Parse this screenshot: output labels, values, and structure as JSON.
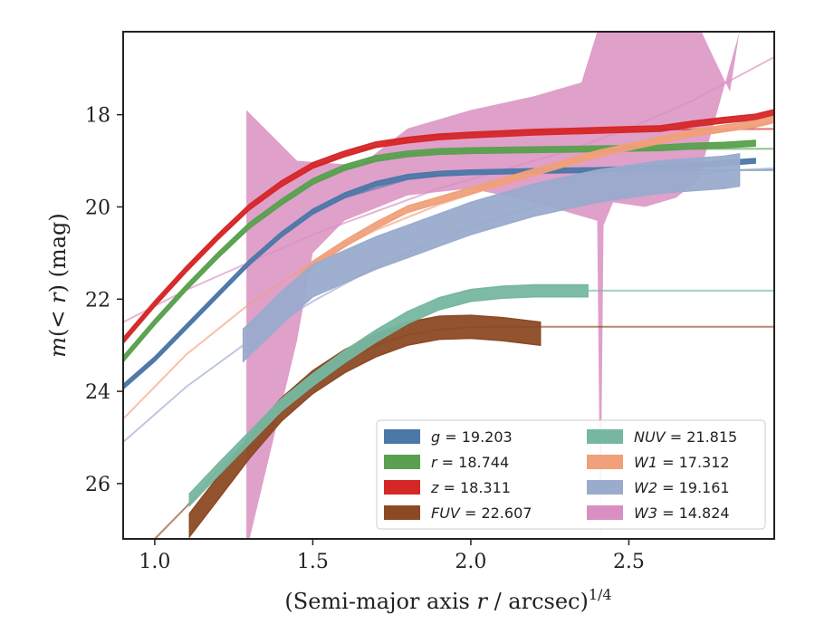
{
  "chart_data": {
    "type": "line",
    "xlabel": "(Semi-major axis r / arcsec)^{1/4}",
    "ylabel": "m(< r) (mag)",
    "xlim": [
      0.9,
      2.96
    ],
    "ylim": [
      27.2,
      16.2
    ],
    "y_inverted": true,
    "xticks": [
      "1.0",
      "1.5",
      "2.0",
      "2.5"
    ],
    "yticks": [
      "18",
      "20",
      "22",
      "24",
      "26"
    ],
    "grid": false,
    "legend_position": "lower-right",
    "legend_columns": 2,
    "series": [
      {
        "name": "g = 19.203",
        "label": {
          "band": "g",
          "value": "19.203"
        },
        "color": "#4c78a8",
        "data_x": [
          0.9,
          1.0,
          1.1,
          1.2,
          1.3,
          1.4,
          1.5,
          1.6,
          1.7,
          1.8,
          1.9,
          2.0,
          2.2,
          2.4,
          2.6,
          2.7,
          2.8,
          2.9
        ],
        "data_y": [
          23.9,
          23.3,
          22.6,
          21.9,
          21.2,
          20.6,
          20.1,
          19.75,
          19.5,
          19.35,
          19.28,
          19.25,
          19.22,
          19.2,
          19.15,
          19.1,
          19.05,
          19.0
        ],
        "band_halfwidth": 0.05,
        "model_x": [
          0.9,
          1.0,
          1.1,
          1.2,
          1.3,
          1.4,
          1.5,
          1.6,
          1.8,
          2.0,
          2.4,
          2.96
        ],
        "model_y": [
          23.9,
          23.3,
          22.6,
          21.9,
          21.25,
          20.65,
          20.15,
          19.8,
          19.4,
          19.25,
          19.21,
          19.2
        ]
      },
      {
        "name": "r = 18.744",
        "label": {
          "band": "r",
          "value": "18.744"
        },
        "color": "#59a14f",
        "data_x": [
          0.9,
          1.0,
          1.1,
          1.2,
          1.3,
          1.4,
          1.5,
          1.6,
          1.7,
          1.8,
          1.9,
          2.0,
          2.2,
          2.4,
          2.6,
          2.7,
          2.8,
          2.9
        ],
        "data_y": [
          23.3,
          22.5,
          21.75,
          21.05,
          20.4,
          19.9,
          19.45,
          19.15,
          18.95,
          18.85,
          18.8,
          18.78,
          18.76,
          18.74,
          18.72,
          18.68,
          18.66,
          18.62
        ],
        "band_halfwidth": 0.06,
        "model_x": [
          0.9,
          1.0,
          1.1,
          1.2,
          1.3,
          1.4,
          1.5,
          1.6,
          1.8,
          2.0,
          2.4,
          2.96
        ],
        "model_y": [
          23.3,
          22.5,
          21.75,
          21.05,
          20.45,
          19.95,
          19.5,
          19.15,
          18.85,
          18.78,
          18.75,
          18.74
        ]
      },
      {
        "name": "z = 18.311",
        "label": {
          "band": "z",
          "value": "18.311"
        },
        "color": "#d62728",
        "data_x": [
          0.9,
          1.0,
          1.1,
          1.2,
          1.3,
          1.4,
          1.5,
          1.6,
          1.7,
          1.8,
          1.9,
          2.0,
          2.2,
          2.4,
          2.6,
          2.7,
          2.8,
          2.9,
          2.96
        ],
        "data_y": [
          22.9,
          22.1,
          21.35,
          20.65,
          20.0,
          19.5,
          19.1,
          18.85,
          18.65,
          18.55,
          18.48,
          18.44,
          18.38,
          18.34,
          18.3,
          18.2,
          18.12,
          18.05,
          17.95
        ],
        "band_halfwidth": 0.06,
        "model_x": [
          0.9,
          1.0,
          1.1,
          1.2,
          1.3,
          1.4,
          1.5,
          1.6,
          1.8,
          2.0,
          2.4,
          2.96
        ],
        "model_y": [
          22.9,
          22.1,
          21.35,
          20.65,
          20.05,
          19.55,
          19.15,
          18.85,
          18.5,
          18.4,
          18.33,
          18.31
        ]
      },
      {
        "name": "FUV = 22.607",
        "label": {
          "band": "FUV",
          "value": "22.607"
        },
        "color": "#8c4a24",
        "data_x": [
          1.11,
          1.2,
          1.3,
          1.4,
          1.5,
          1.6,
          1.7,
          1.8,
          1.9,
          2.0,
          2.1,
          2.22
        ],
        "data_y": [
          26.9,
          26.1,
          25.2,
          24.4,
          23.8,
          23.35,
          23.0,
          22.75,
          22.62,
          22.6,
          22.65,
          22.75
        ],
        "band_halfwidth": 0.25,
        "model_x": [
          1.0,
          1.1,
          1.2,
          1.3,
          1.4,
          1.5,
          1.6,
          1.7,
          1.8,
          1.9,
          2.0,
          2.1,
          2.2,
          2.96
        ],
        "model_y": [
          27.2,
          26.5,
          25.7,
          25.0,
          24.35,
          23.8,
          23.35,
          23.0,
          22.78,
          22.66,
          22.61,
          22.6,
          22.6,
          22.6
        ]
      },
      {
        "name": "NUV = 21.815",
        "label": {
          "band": "NUV",
          "value": "21.815"
        },
        "color": "#76b7a0",
        "data_x": [
          1.11,
          1.2,
          1.3,
          1.4,
          1.5,
          1.6,
          1.7,
          1.8,
          1.9,
          2.0,
          2.1,
          2.2,
          2.3,
          2.37
        ],
        "data_y": [
          26.35,
          25.7,
          25.0,
          24.3,
          23.75,
          23.25,
          22.8,
          22.4,
          22.1,
          21.92,
          21.85,
          21.82,
          21.82,
          21.82
        ],
        "band_halfwidth": 0.13,
        "model_x": [
          2.37,
          2.96
        ],
        "model_y": [
          21.815,
          21.815
        ]
      },
      {
        "name": "W1 = 17.312",
        "label": {
          "band": "W1",
          "value": "17.312"
        },
        "color": "#f0a07a",
        "data_x": [
          1.45,
          1.5,
          1.6,
          1.7,
          1.8,
          1.9,
          2.0,
          2.1,
          2.2,
          2.3,
          2.4,
          2.5,
          2.6,
          2.7,
          2.8,
          2.9,
          2.96
        ],
        "data_y": [
          21.6,
          21.25,
          20.8,
          20.4,
          20.05,
          19.85,
          19.65,
          19.45,
          19.25,
          19.05,
          18.85,
          18.7,
          18.55,
          18.4,
          18.3,
          18.2,
          18.1
        ],
        "band_halfwidth": 0.07,
        "model_x": [
          0.9,
          1.1,
          1.3,
          1.5,
          1.7,
          1.9,
          2.1,
          2.3,
          2.5,
          2.7,
          2.96
        ],
        "model_y": [
          24.6,
          23.2,
          22.1,
          21.2,
          20.5,
          19.95,
          19.5,
          19.1,
          18.75,
          18.45,
          18.15
        ]
      },
      {
        "name": "W2 = 19.161",
        "label": {
          "band": "W2",
          "value": "19.161"
        },
        "color": "#9aabcc",
        "data_x": [
          1.28,
          1.4,
          1.5,
          1.6,
          1.7,
          1.8,
          1.9,
          2.0,
          2.1,
          2.2,
          2.3,
          2.4,
          2.5,
          2.6,
          2.7,
          2.8,
          2.85
        ],
        "data_y": [
          23.0,
          22.2,
          21.6,
          21.3,
          21.0,
          20.75,
          20.5,
          20.25,
          20.05,
          19.85,
          19.7,
          19.55,
          19.45,
          19.35,
          19.3,
          19.25,
          19.2
        ],
        "band_halfwidth": 0.35,
        "model_x": [
          0.9,
          1.1,
          1.3,
          1.5,
          1.7,
          1.9,
          2.1,
          2.3,
          2.5,
          2.7,
          2.85,
          2.96
        ],
        "model_y": [
          25.1,
          23.9,
          22.9,
          22.05,
          21.3,
          20.7,
          20.2,
          19.8,
          19.5,
          19.3,
          19.2,
          19.16
        ]
      },
      {
        "name": "W3 = 14.824",
        "label": {
          "band": "W3",
          "value": "14.824"
        },
        "color": "#d98fc1",
        "band_upper_x": [
          1.29,
          1.45,
          1.65,
          1.8,
          2.0,
          2.2,
          2.35,
          2.4,
          2.41,
          2.55,
          2.72,
          2.73,
          2.75,
          2.82,
          2.85
        ],
        "band_upper_y": [
          17.9,
          19.0,
          19.1,
          18.3,
          17.9,
          17.6,
          17.3,
          16.2,
          16.2,
          16.2,
          16.2,
          16.2,
          16.5,
          17.5,
          16.2
        ],
        "band_lower_x": [
          2.85,
          2.72,
          2.65,
          2.55,
          2.45,
          2.42,
          2.41,
          2.4,
          2.2,
          2.0,
          1.8,
          1.6,
          1.5,
          1.45,
          1.3,
          1.29
        ],
        "band_lower_y": [
          16.2,
          19.4,
          19.8,
          20.0,
          19.9,
          20.4,
          27.2,
          20.3,
          19.9,
          19.6,
          19.75,
          20.3,
          21.0,
          22.9,
          27.2,
          27.2
        ],
        "model_x": [
          0.9,
          1.1,
          1.3,
          1.5,
          1.7,
          1.9,
          2.1,
          2.3,
          2.5,
          2.7,
          2.96
        ],
        "model_y": [
          22.5,
          21.8,
          21.2,
          20.6,
          20.1,
          19.6,
          19.2,
          18.8,
          18.3,
          17.7,
          16.75
        ]
      }
    ]
  }
}
